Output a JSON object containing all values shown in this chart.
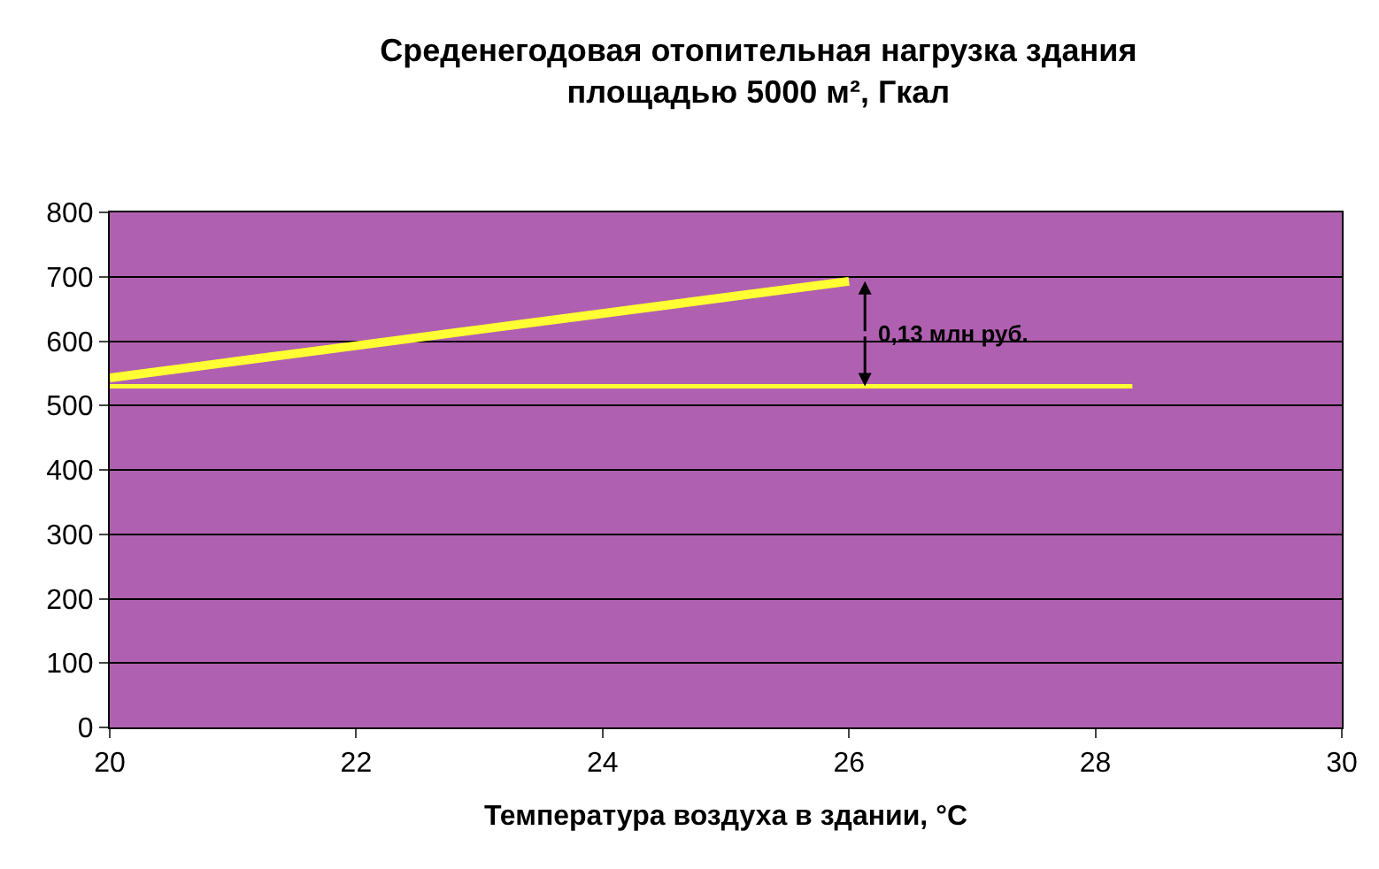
{
  "chart_data": {
    "type": "line",
    "title": "Среденегодовая отопительная нагрузка здания площадью 5000 м², Гкал",
    "xlabel": "Температура воздуха в здании, °С",
    "series": [
      {
        "color": "#ffff33",
        "x": [
          20,
          21,
          22,
          23,
          24,
          25,
          26
        ],
        "values": [
          543,
          568,
          593,
          618,
          643,
          668,
          693
        ]
      },
      {
        "color": "#ffff33",
        "x": [
          20,
          28.3
        ],
        "values": [
          530,
          530
        ]
      }
    ],
    "annotations": [
      {
        "text": "0,13 млн руб.",
        "x": 26,
        "y": 530
      }
    ],
    "xlim": [
      20,
      30
    ],
    "xticks": [
      20,
      22,
      24,
      26,
      28,
      30
    ],
    "ylim": [
      0,
      800
    ],
    "yticks": [
      0,
      100,
      200,
      300,
      400,
      500,
      600,
      700,
      800
    ],
    "grid": "y",
    "legend": false,
    "marker": "none",
    "line_style": "solid"
  }
}
